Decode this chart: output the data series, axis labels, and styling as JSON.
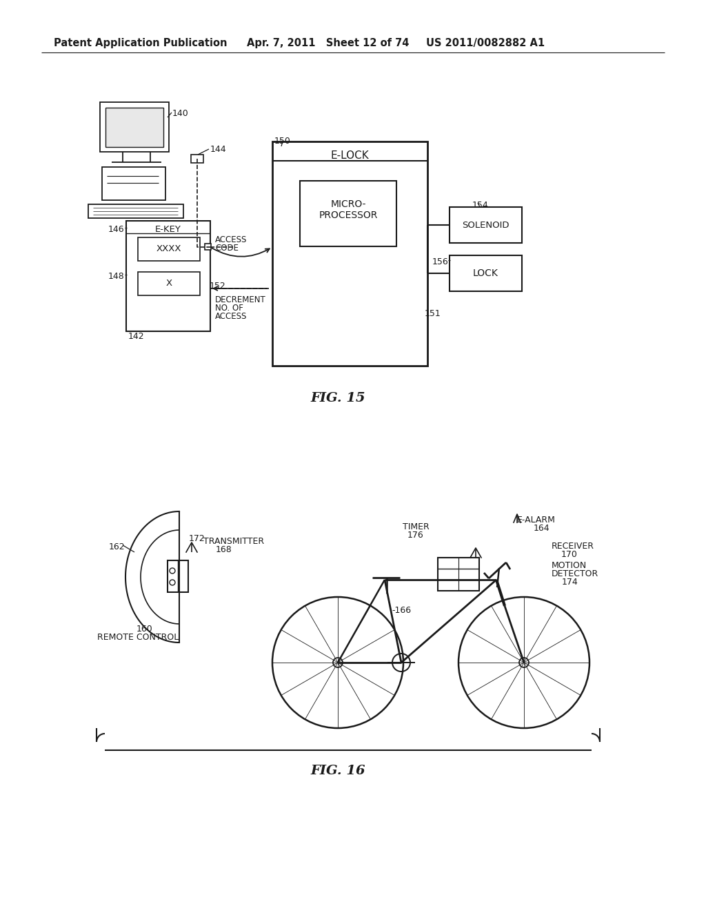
{
  "header_left": "Patent Application Publication",
  "header_mid": "Apr. 7, 2011   Sheet 12 of 74",
  "header_right": "US 2011/0082882 A1",
  "fig15_label": "FIG. 15",
  "fig16_label": "FIG. 16",
  "bg_color": "#ffffff",
  "line_color": "#1a1a1a",
  "font_color": "#1a1a1a"
}
